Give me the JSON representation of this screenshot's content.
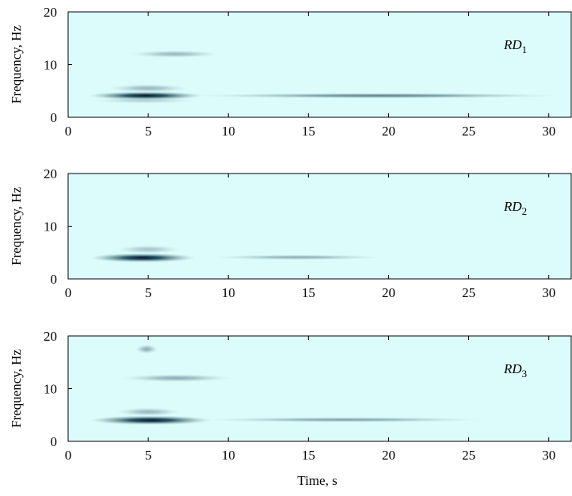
{
  "chart_data": [
    {
      "type": "spectrogram",
      "ylabel": "Frequency, Hz",
      "annotation": {
        "text": "RD",
        "subscript": "1"
      },
      "xlim": [
        0,
        31.4
      ],
      "xticks": [
        0,
        5,
        10,
        15,
        20,
        25,
        30
      ],
      "ylim": [
        0,
        20
      ],
      "yticks": [
        0,
        10,
        20
      ],
      "bands": [
        {
          "t": [
            1.2,
            8.5
          ],
          "f": 4.1,
          "df": 1.0,
          "level": 1
        },
        {
          "t": [
            8.0,
            30.8
          ],
          "f": 4.1,
          "df": 0.4,
          "level": 0.55
        },
        {
          "t": [
            2.5,
            7.5
          ],
          "f": 5.5,
          "df": 1.0,
          "level": 0.3
        },
        {
          "t": [
            3.8,
            9.5
          ],
          "f": 12,
          "df": 0.8,
          "level": 0.3
        },
        {
          "t": [
            1.5,
            8.0
          ],
          "f": 3.2,
          "df": 0.6,
          "level": 0.2
        }
      ]
    },
    {
      "type": "spectrogram",
      "ylabel": "Frequency, Hz",
      "annotation": {
        "text": "RD",
        "subscript": "2"
      },
      "xlim": [
        0,
        31.4
      ],
      "xticks": [
        0,
        5,
        10,
        15,
        20,
        25,
        30
      ],
      "ylim": [
        0,
        20
      ],
      "yticks": [
        0,
        10,
        20
      ],
      "bands": [
        {
          "t": [
            1.3,
            8.0
          ],
          "f": 4.0,
          "df": 1.2,
          "level": 1
        },
        {
          "t": [
            9.0,
            19.7
          ],
          "f": 4.1,
          "df": 0.4,
          "level": 0.35
        },
        {
          "t": [
            3.0,
            7.0
          ],
          "f": 5.6,
          "df": 1.0,
          "level": 0.25
        }
      ]
    },
    {
      "type": "spectrogram",
      "ylabel": "Frequency, Hz",
      "xlabel": "Time, s",
      "annotation": {
        "text": "RD",
        "subscript": "3"
      },
      "xlim": [
        0,
        31.4
      ],
      "xticks": [
        0,
        5,
        10,
        15,
        20,
        25,
        30
      ],
      "ylim": [
        0,
        20
      ],
      "yticks": [
        0,
        10,
        20
      ],
      "bands": [
        {
          "t": [
            1.3,
            9.0
          ],
          "f": 4.0,
          "df": 1.2,
          "level": 1
        },
        {
          "t": [
            8.5,
            26.0
          ],
          "f": 4.1,
          "df": 0.4,
          "level": 0.4
        },
        {
          "t": [
            3.0,
            7.0
          ],
          "f": 5.6,
          "df": 1.0,
          "level": 0.3
        },
        {
          "t": [
            3.3,
            10.2
          ],
          "f": 12,
          "df": 0.9,
          "level": 0.35
        },
        {
          "t": [
            4.2,
            5.6
          ],
          "f": 17.5,
          "df": 1.2,
          "level": 0.35
        }
      ]
    }
  ]
}
